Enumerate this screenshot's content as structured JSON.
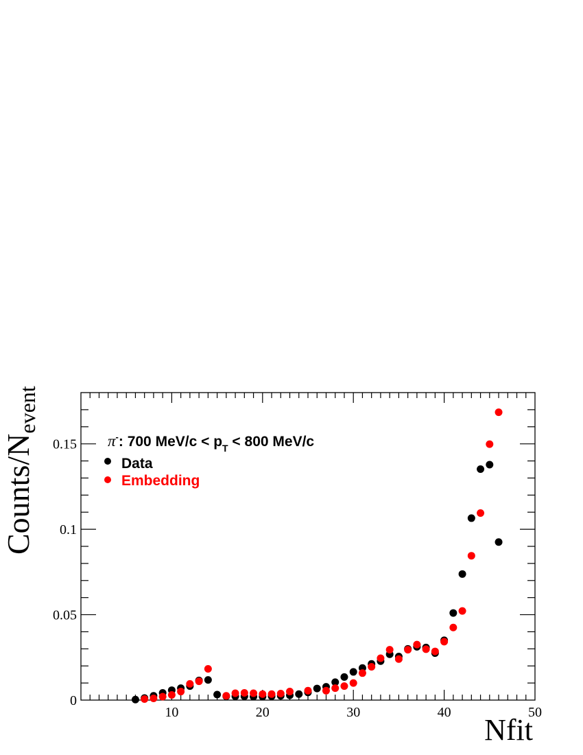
{
  "chart_data": {
    "type": "scatter",
    "xlabel": "Nfit",
    "ylabel": "Counts/N",
    "ylabel_sub": "event",
    "xlim": [
      0,
      50
    ],
    "ylim": [
      0,
      0.18
    ],
    "x_ticks": [
      10,
      20,
      30,
      40,
      50
    ],
    "y_ticks": [
      0,
      0.05,
      0.1,
      0.15
    ],
    "x_tick_labels": [
      "10",
      "20",
      "30",
      "40",
      "50"
    ],
    "y_tick_labels": [
      "0",
      "0.05",
      "0.1",
      "0.15"
    ],
    "annotation": {
      "particle": "π",
      "charge": "-",
      "range_pre": ": 700 MeV/c < p",
      "range_sub": "T",
      "range_post": " < 800 MeV/c"
    },
    "legend_position": "top-left",
    "series": [
      {
        "name": "Data",
        "color": "#000000",
        "points": [
          [
            6,
            0.0003
          ],
          [
            7,
            0.0012
          ],
          [
            8,
            0.0025
          ],
          [
            9,
            0.0042
          ],
          [
            10,
            0.0058
          ],
          [
            11,
            0.007
          ],
          [
            12,
            0.0082
          ],
          [
            13,
            0.0115
          ],
          [
            14,
            0.0118
          ],
          [
            15,
            0.0032
          ],
          [
            16,
            0.0022
          ],
          [
            17,
            0.0022
          ],
          [
            18,
            0.0022
          ],
          [
            19,
            0.002
          ],
          [
            20,
            0.002
          ],
          [
            21,
            0.0022
          ],
          [
            22,
            0.0025
          ],
          [
            23,
            0.0028
          ],
          [
            24,
            0.0035
          ],
          [
            25,
            0.0045
          ],
          [
            26,
            0.0068
          ],
          [
            27,
            0.0078
          ],
          [
            28,
            0.0105
          ],
          [
            29,
            0.0135
          ],
          [
            30,
            0.0165
          ],
          [
            31,
            0.0188
          ],
          [
            32,
            0.0212
          ],
          [
            33,
            0.0228
          ],
          [
            34,
            0.0268
          ],
          [
            35,
            0.0255
          ],
          [
            36,
            0.03
          ],
          [
            37,
            0.0312
          ],
          [
            38,
            0.0308
          ],
          [
            39,
            0.0275
          ],
          [
            40,
            0.035
          ],
          [
            41,
            0.051
          ],
          [
            42,
            0.0738
          ],
          [
            43,
            0.1065
          ],
          [
            44,
            0.1352
          ],
          [
            45,
            0.1378
          ],
          [
            46,
            0.0925
          ]
        ]
      },
      {
        "name": "Embedding",
        "color": "#ff0000",
        "points": [
          [
            7,
            0.0006
          ],
          [
            8,
            0.001
          ],
          [
            9,
            0.002
          ],
          [
            10,
            0.003
          ],
          [
            11,
            0.005
          ],
          [
            12,
            0.0095
          ],
          [
            13,
            0.011
          ],
          [
            14,
            0.0183
          ],
          [
            16,
            0.0025
          ],
          [
            17,
            0.004
          ],
          [
            18,
            0.0042
          ],
          [
            19,
            0.004
          ],
          [
            20,
            0.0035
          ],
          [
            21,
            0.0035
          ],
          [
            22,
            0.0038
          ],
          [
            23,
            0.005
          ],
          [
            25,
            0.0055
          ],
          [
            27,
            0.0055
          ],
          [
            28,
            0.007
          ],
          [
            29,
            0.0082
          ],
          [
            30,
            0.01
          ],
          [
            31,
            0.0158
          ],
          [
            32,
            0.0195
          ],
          [
            33,
            0.0245
          ],
          [
            34,
            0.0295
          ],
          [
            35,
            0.024
          ],
          [
            36,
            0.0295
          ],
          [
            37,
            0.0325
          ],
          [
            38,
            0.0298
          ],
          [
            39,
            0.0285
          ],
          [
            40,
            0.0342
          ],
          [
            41,
            0.0425
          ],
          [
            42,
            0.0522
          ],
          [
            43,
            0.0845
          ],
          [
            44,
            0.1095
          ],
          [
            45,
            0.1498
          ],
          [
            46,
            0.1685
          ]
        ]
      }
    ]
  }
}
